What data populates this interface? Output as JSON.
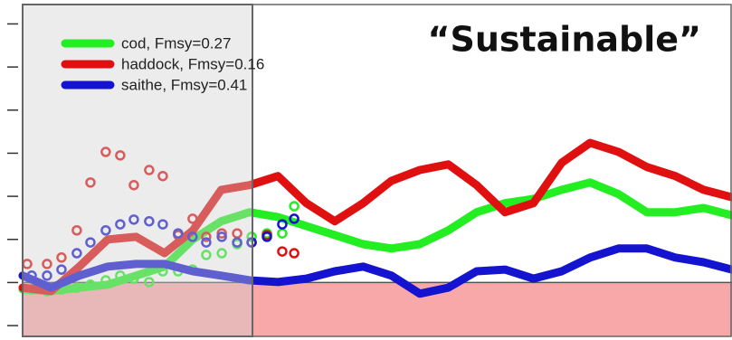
{
  "chart_data": {
    "type": "line",
    "annotation": "“Sustainable”",
    "x": [
      0,
      1,
      2,
      3,
      4,
      5,
      6,
      7,
      8,
      9,
      10,
      11,
      12,
      13,
      14,
      15,
      16,
      17,
      18,
      19,
      20,
      21,
      22,
      23,
      24,
      25
    ],
    "xlim": [
      0,
      25
    ],
    "ylim": [
      -0.25,
      7.45
    ],
    "yticks": [
      0,
      1,
      2,
      3,
      4,
      5,
      6,
      7
    ],
    "threshold": 1,
    "threshold_color": "#f8a8a8",
    "highlight_xlim": [
      0,
      8.1
    ],
    "highlight_color": "#d0d0d0",
    "series": [
      {
        "name": "cod, Fmsy=0.27",
        "color": "#22ee22",
        "values": [
          0.84,
          0.8,
          0.88,
          0.95,
          1.16,
          1.37,
          2.0,
          2.42,
          2.63,
          2.52,
          2.31,
          2.1,
          1.89,
          1.79,
          1.89,
          2.21,
          2.63,
          2.84,
          2.94,
          3.15,
          3.32,
          3.05,
          2.63,
          2.63,
          2.73,
          2.56
        ],
        "points_x": [
          0.32,
          0.86,
          1.37,
          1.91,
          2.39,
          2.93,
          3.44,
          3.92,
          4.46,
          4.94,
          5.48,
          5.99,
          6.47,
          7.02,
          7.56,
          8.07,
          8.61,
          9.15,
          9.57
        ],
        "points_y": [
          0.84,
          0.8,
          0.84,
          0.88,
          0.95,
          1.05,
          1.16,
          1.09,
          1.01,
          1.26,
          1.26,
          1.3,
          1.64,
          1.68,
          1.89,
          2.06,
          2.14,
          2.14,
          2.77
        ]
      },
      {
        "name": "haddock, Fmsy=0.16",
        "color": "#e01010",
        "values": [
          0.88,
          0.8,
          1.37,
          2.0,
          2.06,
          1.68,
          2.21,
          3.15,
          3.26,
          3.47,
          2.84,
          2.42,
          2.84,
          3.36,
          3.61,
          3.74,
          3.26,
          2.63,
          2.84,
          3.78,
          4.24,
          4.03,
          3.68,
          3.47,
          3.15,
          2.98
        ],
        "points_x": [
          0.16,
          0.86,
          1.37,
          1.91,
          2.39,
          2.93,
          3.44,
          3.92,
          4.46,
          4.94,
          5.48,
          5.99,
          6.47,
          7.02,
          7.56,
          8.07,
          8.61,
          9.15,
          9.57
        ],
        "points_y": [
          1.43,
          1.43,
          1.58,
          2.21,
          3.32,
          4.03,
          3.95,
          3.26,
          3.61,
          3.47,
          2.1,
          2.48,
          2.06,
          2.14,
          2.14,
          1.93,
          2.1,
          1.72,
          1.68
        ]
      },
      {
        "name": "saithe, Fmsy=0.41",
        "color": "#1414d0",
        "values": [
          1.16,
          0.88,
          1.16,
          1.37,
          1.43,
          1.43,
          1.26,
          1.16,
          1.05,
          1.01,
          1.09,
          1.26,
          1.37,
          1.16,
          0.74,
          0.88,
          1.26,
          1.3,
          1.09,
          1.26,
          1.58,
          1.79,
          1.79,
          1.58,
          1.47,
          1.3
        ],
        "points_x": [
          0.32,
          0.86,
          1.37,
          1.91,
          2.39,
          2.93,
          3.44,
          3.92,
          4.46,
          4.94,
          5.48,
          5.99,
          6.47,
          7.02,
          7.56,
          8.07,
          8.61,
          9.15,
          9.57
        ],
        "points_y": [
          1.16,
          1.16,
          1.3,
          1.68,
          1.93,
          2.21,
          2.35,
          2.46,
          2.42,
          2.35,
          2.14,
          2.06,
          1.93,
          2.06,
          1.93,
          1.93,
          2.06,
          2.35,
          2.48
        ]
      }
    ]
  }
}
